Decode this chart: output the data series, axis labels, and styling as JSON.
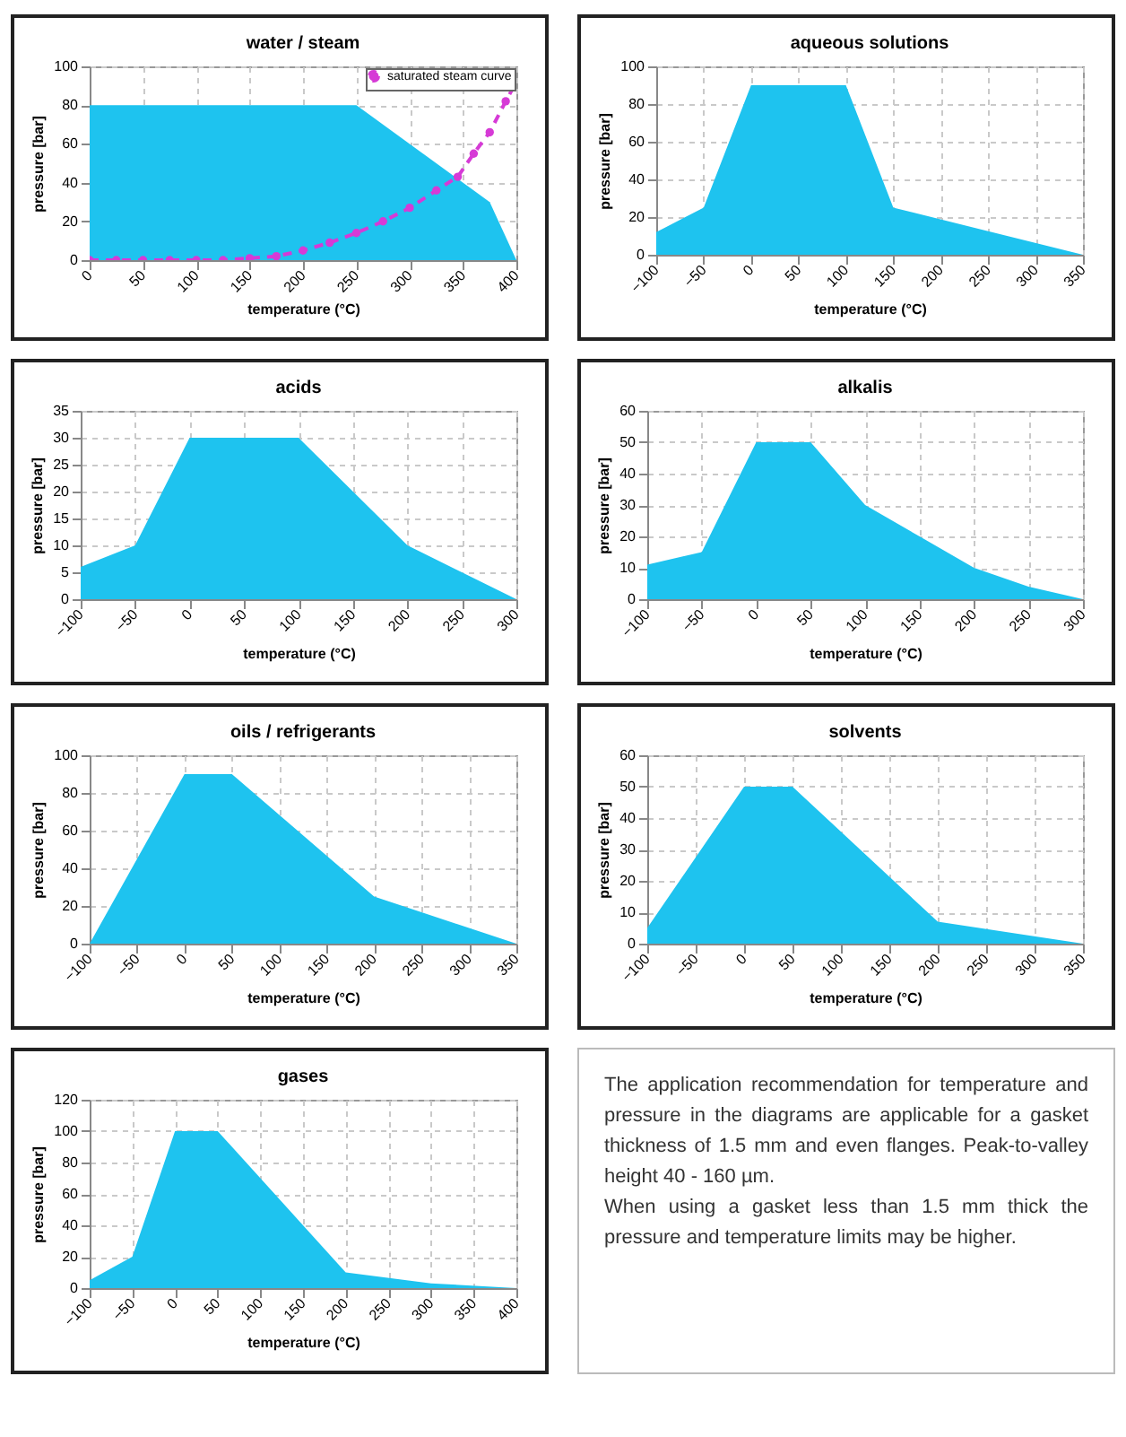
{
  "chart_data": [
    {
      "type": "area",
      "title": "water / steam",
      "xlabel": "temperature (°C)",
      "ylabel": "pressure [bar]",
      "xlim": [
        0,
        400
      ],
      "xticks": [
        0,
        50,
        100,
        150,
        200,
        250,
        300,
        350,
        400
      ],
      "ylim": [
        0,
        100
      ],
      "yticks": [
        0,
        20,
        40,
        60,
        80,
        100
      ],
      "grid": true,
      "legend": "top right",
      "series": [
        {
          "color": "#1ec3ef",
          "x": [
            0,
            250,
            375,
            400
          ],
          "values": [
            80,
            80,
            30,
            0
          ]
        },
        {
          "name": "saturated steam curve",
          "type": "line",
          "color": "#d63ad6",
          "marker": "circle",
          "line_style": "dashed",
          "x": [
            0,
            25,
            50,
            75,
            100,
            125,
            150,
            175,
            200,
            225,
            250,
            275,
            300,
            325,
            345,
            360,
            375,
            390,
            400
          ],
          "values": [
            0,
            0,
            0,
            0,
            0,
            0,
            1,
            2,
            5,
            9,
            14,
            20,
            27,
            36,
            43,
            55,
            66,
            82,
            92
          ]
        }
      ]
    },
    {
      "type": "area",
      "title": "aqueous solutions",
      "xlabel": "temperature (°C)",
      "ylabel": "pressure [bar]",
      "xlim": [
        -100,
        350
      ],
      "xticks": [
        -100,
        -50,
        0,
        50,
        100,
        150,
        200,
        250,
        300,
        350
      ],
      "ylim": [
        0,
        100
      ],
      "yticks": [
        0,
        20,
        40,
        60,
        80,
        100
      ],
      "grid": true,
      "series": [
        {
          "color": "#1ec3ef",
          "x": [
            -100,
            -50,
            0,
            100,
            150,
            350
          ],
          "values": [
            12,
            25,
            90,
            90,
            25,
            0
          ]
        }
      ]
    },
    {
      "type": "area",
      "title": "acids",
      "xlabel": "temperature (°C)",
      "ylabel": "pressure [bar]",
      "xlim": [
        -100,
        300
      ],
      "xticks": [
        -100,
        -50,
        0,
        50,
        100,
        150,
        200,
        250,
        300
      ],
      "ylim": [
        0,
        35
      ],
      "yticks": [
        0,
        5,
        10,
        15,
        20,
        25,
        30,
        35
      ],
      "grid": true,
      "series": [
        {
          "color": "#1ec3ef",
          "x": [
            -100,
            -50,
            0,
            100,
            200,
            300
          ],
          "values": [
            6,
            10,
            30,
            30,
            10,
            0
          ]
        }
      ]
    },
    {
      "type": "area",
      "title": "alkalis",
      "xlabel": "temperature (°C)",
      "ylabel": "pressure [bar]",
      "xlim": [
        -100,
        300
      ],
      "xticks": [
        -100,
        -50,
        0,
        50,
        100,
        150,
        200,
        250,
        300
      ],
      "ylim": [
        0,
        60
      ],
      "yticks": [
        0,
        10,
        20,
        30,
        40,
        50,
        60
      ],
      "grid": true,
      "series": [
        {
          "color": "#1ec3ef",
          "x": [
            -100,
            -50,
            0,
            50,
            100,
            150,
            200,
            250,
            300
          ],
          "values": [
            11,
            15,
            50,
            50,
            30,
            20,
            10,
            4,
            0
          ]
        }
      ]
    },
    {
      "type": "area",
      "title": "oils / refrigerants",
      "xlabel": "temperature (°C)",
      "ylabel": "pressure [bar]",
      "xlim": [
        -100,
        350
      ],
      "xticks": [
        -100,
        -50,
        0,
        50,
        100,
        150,
        200,
        250,
        300,
        350
      ],
      "ylim": [
        0,
        100
      ],
      "yticks": [
        0,
        20,
        40,
        60,
        80,
        100
      ],
      "grid": true,
      "series": [
        {
          "color": "#1ec3ef",
          "x": [
            -100,
            0,
            50,
            200,
            350
          ],
          "values": [
            0,
            90,
            90,
            25,
            0
          ]
        }
      ]
    },
    {
      "type": "area",
      "title": "solvents",
      "xlabel": "temperature (°C)",
      "ylabel": "pressure [bar]",
      "xlim": [
        -100,
        350
      ],
      "xticks": [
        -100,
        -50,
        0,
        50,
        100,
        150,
        200,
        250,
        300,
        350
      ],
      "ylim": [
        0,
        60
      ],
      "yticks": [
        0,
        10,
        20,
        30,
        40,
        50,
        60
      ],
      "grid": true,
      "series": [
        {
          "color": "#1ec3ef",
          "x": [
            -100,
            0,
            50,
            200,
            350
          ],
          "values": [
            5,
            50,
            50,
            7,
            0
          ]
        }
      ]
    },
    {
      "type": "area",
      "title": "gases",
      "xlabel": "temperature (°C)",
      "ylabel": "pressure [bar]",
      "xlim": [
        -100,
        400
      ],
      "xticks": [
        -100,
        -50,
        0,
        50,
        100,
        150,
        200,
        250,
        300,
        350,
        400
      ],
      "ylim": [
        0,
        120
      ],
      "yticks": [
        0,
        20,
        40,
        60,
        80,
        100,
        120
      ],
      "grid": true,
      "series": [
        {
          "color": "#1ec3ef",
          "x": [
            -100,
            -50,
            0,
            50,
            200,
            300,
            400
          ],
          "values": [
            5,
            20,
            100,
            100,
            10,
            3,
            0
          ]
        }
      ]
    },
    {
      "type": "other",
      "annotations": [
        "The application recommendation for temperature and pressure in the diagrams are applicable for a gasket thickness of 1.5 mm and even flanges. Peak-to-valley height 40 - 160 µm.",
        "When using a gasket less than 1.5 mm thick the pressure and temperature limits may be higher."
      ]
    }
  ]
}
